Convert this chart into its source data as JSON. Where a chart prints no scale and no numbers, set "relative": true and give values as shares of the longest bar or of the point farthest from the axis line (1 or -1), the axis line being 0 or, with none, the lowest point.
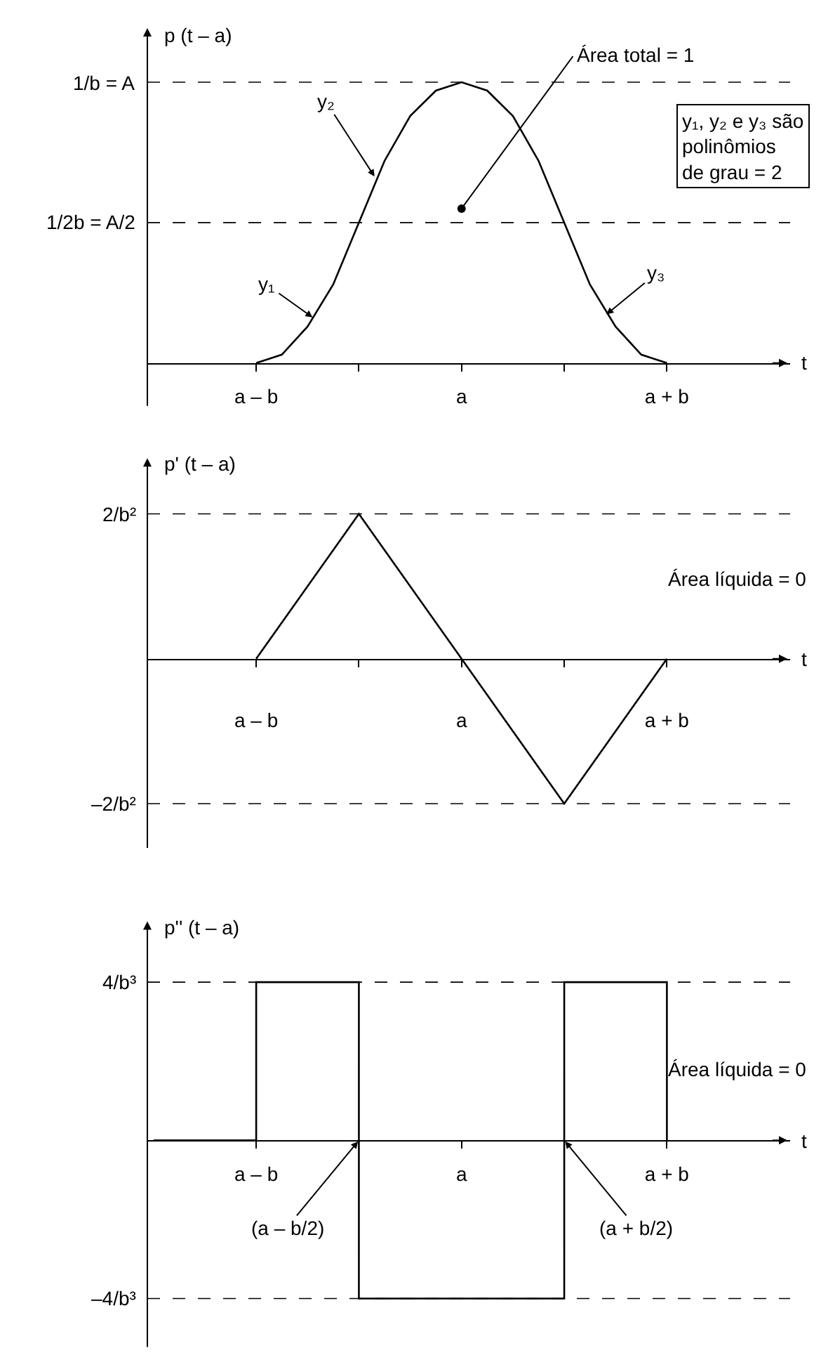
{
  "chart_data": [
    {
      "type": "line",
      "relative": true,
      "ylabel": "p (t – a)",
      "xlabel": "t",
      "color": "#000000",
      "grid": false,
      "marker": "none",
      "line_style": "solid",
      "categories": [
        "a – b",
        null,
        null,
        null,
        null,
        null,
        null,
        null,
        "a",
        null,
        null,
        null,
        null,
        null,
        null,
        null,
        "a + b"
      ],
      "values": [
        0,
        0.03,
        0.13,
        0.28,
        0.5,
        0.72,
        0.88,
        0.97,
        1,
        0.97,
        0.88,
        0.72,
        0.5,
        0.28,
        0.13,
        0.03,
        0
      ],
      "ref_lines": [
        {
          "axis": "y",
          "value": 1,
          "label": "1/b = A",
          "line_style": "dashed"
        },
        {
          "axis": "y",
          "value": 0.5,
          "label": "1/2b = A/2",
          "line_style": "dashed"
        }
      ],
      "annotations": [
        "y₁",
        "y₂",
        "y₃",
        "Área total = 1",
        "y₁, y₂ e y₃ são\npolinômios\nde grau = 2"
      ]
    },
    {
      "type": "line",
      "relative": true,
      "ylabel": "p' (t – a)",
      "xlabel": "t",
      "color": "#000000",
      "grid": false,
      "marker": "none",
      "line_style": "solid",
      "categories": [
        "a – b",
        null,
        "a",
        null,
        "a + b"
      ],
      "values": [
        0,
        1,
        0,
        -1,
        0
      ],
      "ref_lines": [
        {
          "axis": "y",
          "value": 1,
          "label": "2/b²",
          "line_style": "dashed"
        },
        {
          "axis": "y",
          "value": -1,
          "label": "–2/b²",
          "line_style": "dashed"
        }
      ],
      "annotations": [
        "Área líquida = 0"
      ]
    },
    {
      "type": "step",
      "relative": true,
      "ylabel": "p'' (t – a)",
      "xlabel": "t",
      "color": "#000000",
      "grid": false,
      "marker": "none",
      "line_style": "solid",
      "categories": [
        null,
        "a – b",
        null,
        "a",
        null,
        "a + b"
      ],
      "values": [
        0,
        1,
        -1,
        -1,
        1,
        0
      ],
      "ref_lines": [
        {
          "axis": "y",
          "value": 1,
          "label": "4/b³",
          "line_style": "dashed"
        },
        {
          "axis": "y",
          "value": -1,
          "label": "–4/b³",
          "line_style": "dashed"
        }
      ],
      "annotations": [
        "(a – b/2)",
        "(a + b/2)",
        "Área líquida = 0"
      ]
    }
  ]
}
